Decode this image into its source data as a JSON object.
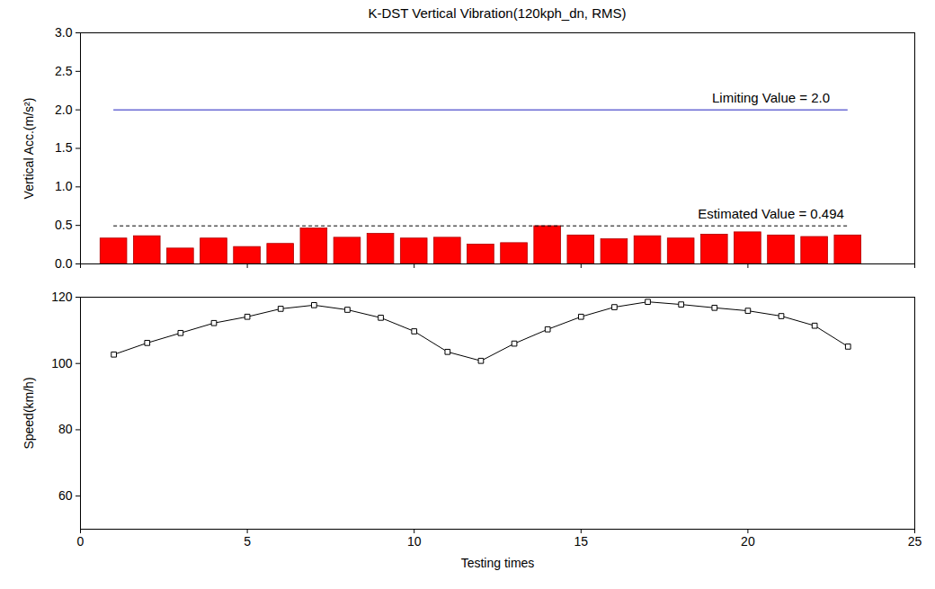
{
  "chart_data": [
    {
      "type": "bar",
      "title": "K-DST Vertical Vibration(120kph_dn, RMS)",
      "y_label": "Vertical Acc.(m/s²)",
      "x": [
        1,
        2,
        3,
        4,
        5,
        6,
        7,
        8,
        9,
        10,
        11,
        12,
        13,
        14,
        15,
        16,
        17,
        18,
        19,
        20,
        21,
        22,
        23
      ],
      "values": [
        0.33,
        0.36,
        0.2,
        0.33,
        0.22,
        0.26,
        0.46,
        0.34,
        0.39,
        0.33,
        0.34,
        0.25,
        0.27,
        0.49,
        0.37,
        0.32,
        0.36,
        0.33,
        0.38,
        0.41,
        0.37,
        0.35,
        0.37
      ],
      "color": "#ff0000",
      "xlim": [
        0,
        25
      ],
      "xticks": [
        0,
        5,
        10,
        15,
        20,
        25
      ],
      "ylim": [
        0,
        3
      ],
      "yticks": [
        {
          "value": 0,
          "label": "0.0"
        },
        0.5,
        {
          "value": 1,
          "label": "1.0"
        },
        1.5,
        {
          "value": 2,
          "label": "2.0"
        },
        2.5,
        {
          "value": 3,
          "label": "3.0"
        }
      ],
      "tick_labels": "y",
      "reference_lines": [
        {
          "value": 2.0,
          "label": "Limiting Value = 2.0",
          "color": "#2020c0",
          "line_style": "solid"
        },
        {
          "value": 0.494,
          "label": "Estimated Value = 0.494",
          "color": "#000000",
          "line_style": "dashed"
        }
      ]
    },
    {
      "type": "line",
      "x_label": "Testing times",
      "y_label": "Speed(km/h)",
      "x": [
        1,
        2,
        3,
        4,
        5,
        6,
        7,
        8,
        9,
        10,
        11,
        12,
        13,
        14,
        15,
        16,
        17,
        18,
        19,
        20,
        21,
        22,
        23
      ],
      "values": [
        102.7,
        106.2,
        109.2,
        112.2,
        114.1,
        116.5,
        117.6,
        116.2,
        113.8,
        109.7,
        103.5,
        100.8,
        106.0,
        110.3,
        114.1,
        117.0,
        118.6,
        117.8,
        116.8,
        115.9,
        114.3,
        111.4,
        105.1
      ],
      "color": "#000000",
      "marker": "square",
      "xlim": [
        0,
        25
      ],
      "xticks": [
        0,
        5,
        10,
        15,
        20,
        25
      ],
      "ylim": [
        50,
        120
      ],
      "yticks": [
        60,
        80,
        100,
        120
      ]
    }
  ]
}
